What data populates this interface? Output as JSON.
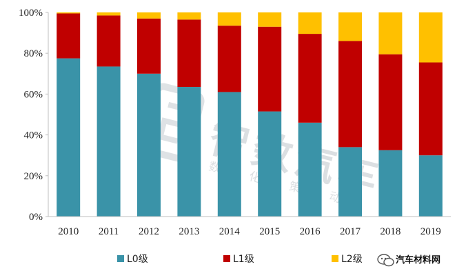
{
  "chart_data": {
    "type": "bar",
    "stacked": true,
    "categories": [
      "2010",
      "2011",
      "2012",
      "2013",
      "2014",
      "2015",
      "2016",
      "2017",
      "2018",
      "2019"
    ],
    "series": [
      {
        "name": "L0级",
        "color": "#3a93a8",
        "values": [
          77.5,
          73.5,
          70,
          63.5,
          61,
          51.5,
          46,
          34,
          32.5,
          30
        ]
      },
      {
        "name": "L1级",
        "color": "#c00000",
        "values": [
          22,
          25,
          27,
          33,
          32.5,
          41.5,
          43.5,
          52,
          47,
          45.5
        ]
      },
      {
        "name": "L2级",
        "color": "#ffc000",
        "values": [
          0.5,
          1.5,
          3,
          3.5,
          6.5,
          7,
          10.5,
          14,
          20.5,
          24.5
        ]
      }
    ],
    "yticks": [
      "0%",
      "20%",
      "40%",
      "60%",
      "80%",
      "100%"
    ],
    "ylim": [
      0,
      100
    ],
    "grid": false,
    "legend_position": "bottom"
  },
  "watermark": {
    "brand": "智数汽车",
    "slogan": "数据化决策推动者",
    "registered": "®"
  },
  "credit": {
    "text": "汽车材料网",
    "icon": "wechat-icon"
  }
}
